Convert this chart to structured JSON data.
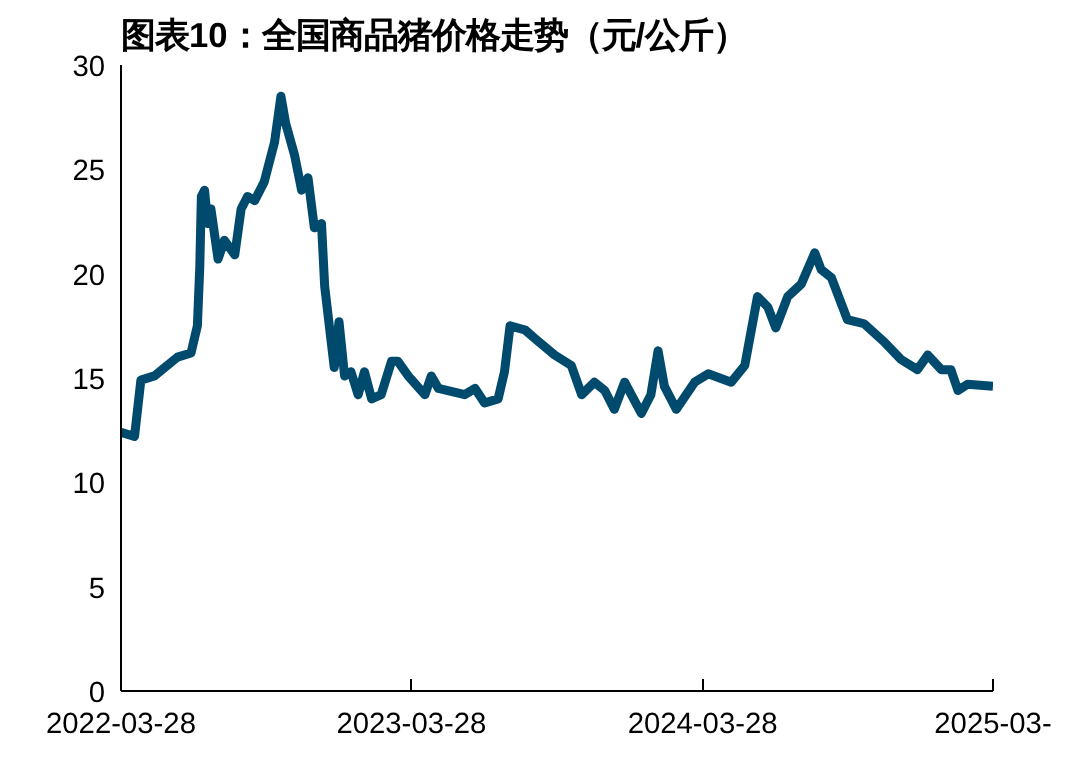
{
  "chart_data": {
    "type": "line",
    "title": "图表10：全国商品猪价格走势（元/公斤）",
    "x": [
      "2022-03-28",
      "2022-04-14",
      "2022-04-22",
      "2022-05-09",
      "2022-05-22",
      "2022-06-07",
      "2022-06-24",
      "2022-07-02",
      "2022-07-05",
      "2022-07-07",
      "2022-07-11",
      "2022-07-15",
      "2022-07-19",
      "2022-07-28",
      "2022-08-05",
      "2022-08-18",
      "2022-08-26",
      "2022-09-03",
      "2022-09-12",
      "2022-09-24",
      "2022-10-07",
      "2022-10-15",
      "2022-10-21",
      "2022-11-01",
      "2022-11-10",
      "2022-11-18",
      "2022-11-26",
      "2022-12-05",
      "2022-12-09",
      "2022-12-17",
      "2022-12-21",
      "2022-12-27",
      "2023-01-03",
      "2023-01-11",
      "2023-01-20",
      "2023-01-28",
      "2023-02-06",
      "2023-02-18",
      "2023-03-03",
      "2023-03-11",
      "2023-03-24",
      "2023-04-14",
      "2023-04-22",
      "2023-05-01",
      "2023-06-03",
      "2023-06-16",
      "2023-06-28",
      "2023-07-15",
      "2023-07-23",
      "2023-07-30",
      "2023-08-18",
      "2023-08-30",
      "2023-09-24",
      "2023-10-15",
      "2023-10-28",
      "2023-11-13",
      "2023-11-26",
      "2023-12-08",
      "2023-12-21",
      "2024-01-11",
      "2024-01-23",
      "2024-02-01",
      "2024-02-09",
      "2024-02-24",
      "2024-03-18",
      "2024-04-04",
      "2024-05-03",
      "2024-05-20",
      "2024-06-05",
      "2024-06-18",
      "2024-06-28",
      "2024-07-13",
      "2024-07-30",
      "2024-08-16",
      "2024-08-24",
      "2024-09-06",
      "2024-09-26",
      "2024-10-17",
      "2024-11-12",
      "2024-12-02",
      "2024-12-23",
      "2025-01-05",
      "2025-01-22",
      "2025-02-03",
      "2025-02-12",
      "2025-02-24",
      "2025-03-28"
    ],
    "series": [
      {
        "color": "#004a6e",
        "values": [
          12.4,
          12.2,
          14.9,
          15.1,
          15.5,
          16.0,
          16.2,
          17.5,
          20.3,
          23.7,
          24.0,
          22.4,
          23.1,
          20.7,
          21.6,
          20.9,
          23.1,
          23.7,
          23.5,
          24.4,
          26.3,
          28.5,
          27.2,
          25.7,
          24.0,
          24.6,
          22.2,
          22.4,
          19.4,
          16.8,
          15.5,
          17.7,
          15.1,
          15.3,
          14.2,
          15.3,
          14.0,
          14.2,
          15.8,
          15.8,
          15.1,
          14.2,
          15.1,
          14.5,
          14.2,
          14.5,
          13.8,
          14.0,
          15.3,
          17.5,
          17.3,
          16.9,
          16.1,
          15.6,
          14.2,
          14.8,
          14.4,
          13.5,
          14.8,
          13.3,
          14.2,
          16.3,
          14.6,
          13.5,
          14.8,
          15.2,
          14.8,
          15.6,
          18.9,
          18.4,
          17.4,
          18.9,
          19.5,
          21.0,
          20.2,
          19.8,
          17.8,
          17.6,
          16.7,
          15.9,
          15.4,
          16.1,
          15.4,
          15.4,
          14.4,
          14.7,
          14.6
        ]
      }
    ],
    "xlim": [
      "2022-03-28",
      "2025-03-28"
    ],
    "xticks": [
      "2022-03-28",
      "2023-03-28",
      "2024-03-28",
      {
        "value": "2025-03-28",
        "label": "2025-03-"
      }
    ],
    "ylim": [
      0,
      30
    ],
    "yticks": [
      0,
      5,
      10,
      15,
      20,
      25,
      30
    ],
    "grid": false,
    "marker": "none",
    "line_style": "solid"
  }
}
